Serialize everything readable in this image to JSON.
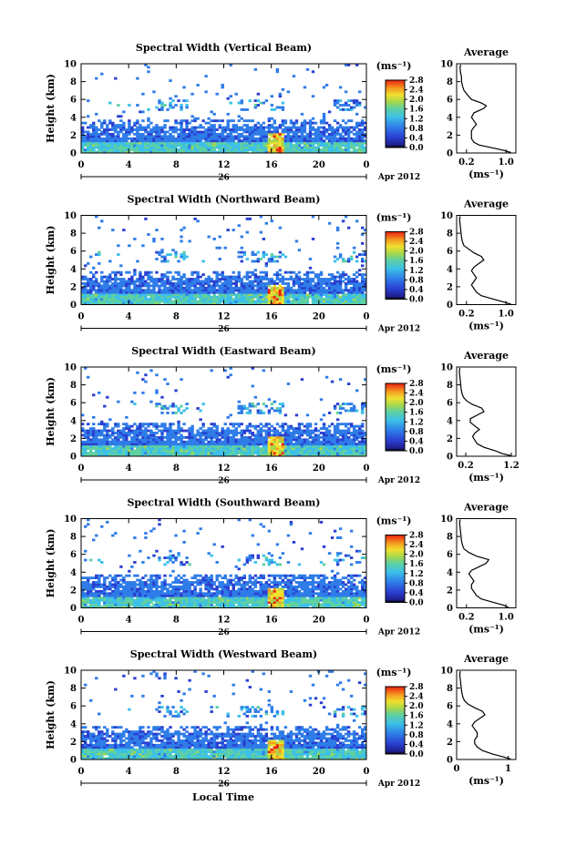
{
  "chart_data": [
    {
      "type": "heatmap",
      "title": "Spectral Width (Vertical Beam)",
      "ylabel": "Height (km)",
      "ylim": [
        0,
        10
      ],
      "yticks": [
        "0",
        "2",
        "4",
        "6",
        "8",
        "10"
      ],
      "xlim": [
        0,
        24
      ],
      "xticks": [
        "0",
        "4",
        "8",
        "12",
        "16",
        "20",
        "0"
      ],
      "day_label": "26",
      "date_label": "Apr 2012",
      "colorbar": {
        "unit": "(ms⁻¹)",
        "ticks": [
          "0.0",
          "0.4",
          "0.8",
          "1.2",
          "1.6",
          "2.0",
          "2.4",
          "2.8"
        ],
        "range": [
          0,
          2.8
        ]
      },
      "average": {
        "title": "Average",
        "xlabel": "(ms⁻¹)",
        "xticks": [
          "0.2",
          "1.0"
        ],
        "xlim": [
          0,
          1.2
        ],
        "profile": [
          [
            0.05,
            1.1
          ],
          [
            0.3,
            0.95
          ],
          [
            0.6,
            0.7
          ],
          [
            0.9,
            0.45
          ],
          [
            1.2,
            0.35
          ],
          [
            1.6,
            0.3
          ],
          [
            2.0,
            0.3
          ],
          [
            2.5,
            0.3
          ],
          [
            2.9,
            0.35
          ],
          [
            3.2,
            0.4
          ],
          [
            3.6,
            0.35
          ],
          [
            4.0,
            0.3
          ],
          [
            4.5,
            0.35
          ],
          [
            5.0,
            0.55
          ],
          [
            5.3,
            0.6
          ],
          [
            5.6,
            0.5
          ],
          [
            6.0,
            0.3
          ],
          [
            6.5,
            0.22
          ],
          [
            7.0,
            0.15
          ],
          [
            7.5,
            0.12
          ],
          [
            8.0,
            0.1
          ],
          [
            8.5,
            0.1
          ],
          [
            9.0,
            0.08
          ],
          [
            9.5,
            0.07
          ],
          [
            9.9,
            0.08
          ]
        ]
      }
    },
    {
      "type": "heatmap",
      "title": "Spectral Width (Northward Beam)",
      "ylabel": "Height (km)",
      "ylim": [
        0,
        10
      ],
      "yticks": [
        "0",
        "2",
        "4",
        "6",
        "8",
        "10"
      ],
      "xlim": [
        0,
        24
      ],
      "xticks": [
        "0",
        "4",
        "8",
        "12",
        "16",
        "20",
        "0"
      ],
      "day_label": "26",
      "date_label": "Apr 2012",
      "colorbar": {
        "unit": "(ms⁻¹)",
        "ticks": [
          "0.0",
          "0.4",
          "0.8",
          "1.2",
          "1.6",
          "2.0",
          "2.4",
          "2.8"
        ],
        "range": [
          0,
          2.8
        ]
      },
      "average": {
        "title": "Average",
        "xlabel": "(ms⁻¹)",
        "xticks": [
          "0.2",
          "1.0"
        ],
        "xlim": [
          0,
          1.2
        ],
        "profile": [
          [
            0.05,
            1.1
          ],
          [
            0.3,
            0.95
          ],
          [
            0.6,
            0.75
          ],
          [
            1.0,
            0.5
          ],
          [
            1.4,
            0.4
          ],
          [
            1.8,
            0.35
          ],
          [
            2.2,
            0.3
          ],
          [
            2.6,
            0.35
          ],
          [
            3.0,
            0.4
          ],
          [
            3.4,
            0.35
          ],
          [
            3.8,
            0.3
          ],
          [
            4.2,
            0.35
          ],
          [
            4.6,
            0.45
          ],
          [
            5.0,
            0.55
          ],
          [
            5.4,
            0.5
          ],
          [
            5.8,
            0.35
          ],
          [
            6.2,
            0.25
          ],
          [
            6.6,
            0.15
          ],
          [
            7.0,
            0.12
          ],
          [
            7.5,
            0.1
          ],
          [
            8.0,
            0.09
          ],
          [
            8.5,
            0.08
          ],
          [
            9.0,
            0.07
          ],
          [
            9.5,
            0.06
          ],
          [
            9.9,
            0.07
          ]
        ]
      }
    },
    {
      "type": "heatmap",
      "title": "Spectral Width (Eastward Beam)",
      "ylabel": "Height (km)",
      "ylim": [
        0,
        10
      ],
      "yticks": [
        "0",
        "2",
        "4",
        "6",
        "8",
        "10"
      ],
      "xlim": [
        0,
        24
      ],
      "xticks": [
        "0",
        "4",
        "8",
        "12",
        "16",
        "20",
        "0"
      ],
      "day_label": "26",
      "date_label": "Apr 2012",
      "colorbar": {
        "unit": "(ms⁻¹)",
        "ticks": [
          "0.0",
          "0.4",
          "0.8",
          "1.2",
          "1.6",
          "2.0",
          "2.4",
          "2.8"
        ],
        "range": [
          0,
          2.8
        ]
      },
      "average": {
        "title": "Average",
        "xlabel": "(ms⁻¹)",
        "xticks": [
          "0.2",
          "1.2"
        ],
        "xlim": [
          0,
          1.3
        ],
        "profile": [
          [
            0.05,
            1.2
          ],
          [
            0.3,
            1.0
          ],
          [
            0.6,
            0.85
          ],
          [
            1.0,
            0.6
          ],
          [
            1.4,
            0.45
          ],
          [
            1.8,
            0.4
          ],
          [
            2.2,
            0.35
          ],
          [
            2.6,
            0.4
          ],
          [
            3.0,
            0.5
          ],
          [
            3.4,
            0.4
          ],
          [
            3.8,
            0.3
          ],
          [
            4.2,
            0.3
          ],
          [
            4.6,
            0.45
          ],
          [
            5.0,
            0.6
          ],
          [
            5.4,
            0.55
          ],
          [
            5.8,
            0.35
          ],
          [
            6.2,
            0.22
          ],
          [
            6.6,
            0.15
          ],
          [
            7.0,
            0.12
          ],
          [
            7.5,
            0.1
          ],
          [
            8.0,
            0.09
          ],
          [
            8.5,
            0.08
          ],
          [
            9.0,
            0.07
          ],
          [
            9.5,
            0.06
          ],
          [
            9.9,
            0.07
          ]
        ]
      }
    },
    {
      "type": "heatmap",
      "title": "Spectral Width (Southward Beam)",
      "ylabel": "Height (km)",
      "ylim": [
        0,
        10
      ],
      "yticks": [
        "0",
        "2",
        "4",
        "6",
        "8",
        "10"
      ],
      "xlim": [
        0,
        24
      ],
      "xticks": [
        "0",
        "4",
        "8",
        "12",
        "16",
        "20",
        "0"
      ],
      "day_label": "26",
      "date_label": "Apr 2012",
      "colorbar": {
        "unit": "(ms⁻¹)",
        "ticks": [
          "0.0",
          "0.4",
          "0.8",
          "1.2",
          "1.6",
          "2.0",
          "2.4",
          "2.8"
        ],
        "range": [
          0,
          2.8
        ]
      },
      "average": {
        "title": "Average",
        "xlabel": "(ms⁻¹)",
        "xticks": [
          "0.2",
          "1.0"
        ],
        "xlim": [
          0,
          1.2
        ],
        "profile": [
          [
            0.05,
            1.05
          ],
          [
            0.3,
            0.95
          ],
          [
            0.6,
            0.75
          ],
          [
            1.0,
            0.5
          ],
          [
            1.4,
            0.4
          ],
          [
            1.8,
            0.35
          ],
          [
            2.2,
            0.3
          ],
          [
            2.6,
            0.3
          ],
          [
            3.0,
            0.35
          ],
          [
            3.4,
            0.3
          ],
          [
            3.8,
            0.25
          ],
          [
            4.2,
            0.3
          ],
          [
            4.6,
            0.45
          ],
          [
            5.0,
            0.6
          ],
          [
            5.4,
            0.65
          ],
          [
            5.8,
            0.4
          ],
          [
            6.2,
            0.25
          ],
          [
            6.6,
            0.15
          ],
          [
            7.0,
            0.12
          ],
          [
            7.5,
            0.1
          ],
          [
            8.0,
            0.09
          ],
          [
            8.5,
            0.08
          ],
          [
            9.0,
            0.07
          ],
          [
            9.5,
            0.06
          ],
          [
            9.9,
            0.07
          ]
        ]
      }
    },
    {
      "type": "heatmap",
      "title": "Spectral Width (Westward Beam)",
      "ylabel": "Height (km)",
      "ylim": [
        0,
        10
      ],
      "yticks": [
        "0",
        "2",
        "4",
        "6",
        "8",
        "10"
      ],
      "xlim": [
        0,
        24
      ],
      "xticks": [
        "0",
        "4",
        "8",
        "12",
        "16",
        "20",
        "0"
      ],
      "day_label": "26",
      "date_label": "Apr 2012",
      "colorbar": {
        "unit": "(ms⁻¹)",
        "ticks": [
          "0.0",
          "0.4",
          "0.8",
          "1.2",
          "1.6",
          "2.0",
          "2.4",
          "2.8"
        ],
        "range": [
          0,
          2.8
        ]
      },
      "average": {
        "title": "Average",
        "xlabel": "(ms⁻¹)",
        "xticks": [
          "0",
          "1"
        ],
        "xlim": [
          0,
          1.15
        ],
        "profile": [
          [
            0.05,
            1.05
          ],
          [
            0.3,
            0.9
          ],
          [
            0.6,
            0.7
          ],
          [
            1.0,
            0.5
          ],
          [
            1.4,
            0.4
          ],
          [
            1.8,
            0.35
          ],
          [
            2.2,
            0.35
          ],
          [
            2.6,
            0.4
          ],
          [
            3.0,
            0.4
          ],
          [
            3.4,
            0.35
          ],
          [
            3.8,
            0.3
          ],
          [
            4.2,
            0.35
          ],
          [
            4.6,
            0.45
          ],
          [
            5.0,
            0.55
          ],
          [
            5.4,
            0.5
          ],
          [
            5.8,
            0.35
          ],
          [
            6.2,
            0.22
          ],
          [
            6.6,
            0.15
          ],
          [
            7.0,
            0.12
          ],
          [
            7.5,
            0.1
          ],
          [
            8.0,
            0.09
          ],
          [
            8.5,
            0.08
          ],
          [
            9.0,
            0.07
          ],
          [
            9.5,
            0.06
          ],
          [
            9.9,
            0.07
          ]
        ]
      }
    }
  ],
  "figure": {
    "xlabel": "Local Time"
  }
}
